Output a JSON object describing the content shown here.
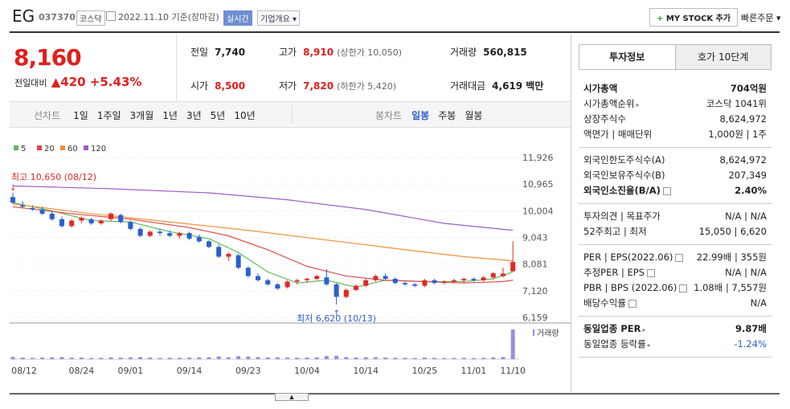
{
  "header": {
    "name": "EG",
    "code": "037370",
    "market": "코스닥",
    "date": "2022.11.10",
    "basis": "기준(장마감)",
    "realtime": "실시간",
    "overview": "기업개요",
    "mystock": "MY STOCK 추가",
    "quick_order": "빠른주문"
  },
  "quote": {
    "price": "8,160",
    "change_label": "전일대비",
    "change": "420",
    "rate": "+5.43%",
    "fields": [
      {
        "label": "전일",
        "value": "7,740",
        "extra": null,
        "color": "#222"
      },
      {
        "label": "고가",
        "value": "8,910",
        "extra": "(상한가 10,050)",
        "color": "#e0201c"
      },
      {
        "label": "거래량",
        "value": "560,815",
        "extra": null,
        "color": "#222"
      },
      {
        "label": "시가",
        "value": "8,500",
        "extra": null,
        "color": "#e0201c"
      },
      {
        "label": "저가",
        "value": "7,820",
        "extra": "(하한가 5,420)",
        "color": "#e0201c"
      },
      {
        "label": "거래대금",
        "value": "4,619 백만",
        "extra": null,
        "color": "#222"
      }
    ]
  },
  "toolbar": {
    "line_chart": "선차트",
    "periods": [
      "1일",
      "1주일",
      "3개월",
      "1년",
      "3년",
      "5년",
      "10년"
    ],
    "candle_chart": "봉차트",
    "candle_periods": [
      "일봉",
      "주봉",
      "월봉"
    ],
    "active": "일봉"
  },
  "chart": {
    "ylim": [
      6159,
      11926
    ],
    "yticks": [
      {
        "value": 11926,
        "label": "11,926"
      },
      {
        "value": 10965,
        "label": "10,965"
      },
      {
        "value": 10004,
        "label": "10,004"
      },
      {
        "value": 9043,
        "label": "9,043"
      },
      {
        "value": 8081,
        "label": "8,081"
      },
      {
        "value": 7120,
        "label": "7,120"
      },
      {
        "value": 6159,
        "label": "6,159"
      }
    ],
    "up_color": "#e22926",
    "down_color": "#2a5fd0",
    "volume_color": "#9b8fd6",
    "volume_label": "거래량",
    "high_label": "최고 10,650 (08/12)",
    "low_label": "최저 6,620 (10/13)",
    "ma": [
      {
        "name": "5",
        "color": "#5cb85c",
        "x": [
          0,
          4,
          8,
          12,
          16,
          20,
          23,
          26,
          29,
          32,
          35,
          38,
          42,
          46,
          49,
          51
        ],
        "values": [
          10300,
          10000,
          9650,
          9600,
          9250,
          9000,
          8500,
          7800,
          7400,
          7500,
          7250,
          7500,
          7450,
          7450,
          7550,
          7800
        ]
      },
      {
        "name": "20",
        "color": "#e04848",
        "x": [
          0,
          6,
          12,
          18,
          22,
          26,
          30,
          34,
          38,
          42,
          46,
          50,
          51
        ],
        "values": [
          10150,
          9900,
          9700,
          9400,
          9100,
          8600,
          8000,
          7650,
          7500,
          7450,
          7400,
          7450,
          7500
        ]
      },
      {
        "name": "60",
        "color": "#f0913a",
        "x": [
          0,
          8,
          16,
          24,
          32,
          40,
          46,
          51
        ],
        "values": [
          10250,
          9900,
          9600,
          9300,
          8950,
          8600,
          8350,
          8200
        ]
      },
      {
        "name": "120",
        "color": "#a05cc8",
        "x": [
          0,
          10,
          20,
          28,
          36,
          44,
          51
        ],
        "values": [
          10900,
          10800,
          10650,
          10400,
          10050,
          9550,
          9300
        ]
      }
    ],
    "candles": [
      [
        10500,
        10650,
        10250,
        10300
      ],
      [
        10200,
        10350,
        10100,
        10150
      ],
      [
        10100,
        10200,
        10000,
        10050
      ],
      [
        10050,
        10150,
        9850,
        9900
      ],
      [
        9900,
        10000,
        9650,
        9700
      ],
      [
        9700,
        9800,
        9400,
        9450
      ],
      [
        9450,
        9700,
        9400,
        9650
      ],
      [
        9650,
        9800,
        9550,
        9750
      ],
      [
        9700,
        9750,
        9500,
        9550
      ],
      [
        9550,
        9700,
        9500,
        9650
      ],
      [
        9700,
        9950,
        9650,
        9900
      ],
      [
        9850,
        9900,
        9550,
        9600
      ],
      [
        9600,
        9650,
        9300,
        9350
      ],
      [
        9350,
        9400,
        9050,
        9100
      ],
      [
        9100,
        9300,
        9050,
        9250
      ],
      [
        9250,
        9350,
        9100,
        9200
      ],
      [
        9200,
        9300,
        9050,
        9100
      ],
      [
        9100,
        9250,
        9000,
        9200
      ],
      [
        9200,
        9250,
        8950,
        9000
      ],
      [
        9050,
        9150,
        8850,
        8900
      ],
      [
        8900,
        8950,
        8650,
        8700
      ],
      [
        8700,
        8800,
        8300,
        8350
      ],
      [
        8350,
        8500,
        8200,
        8450
      ],
      [
        8400,
        8450,
        7900,
        7950
      ],
      [
        7950,
        8000,
        7600,
        7650
      ],
      [
        7650,
        7750,
        7450,
        7500
      ],
      [
        7500,
        7550,
        7300,
        7350
      ],
      [
        7350,
        7400,
        7150,
        7200
      ],
      [
        7250,
        7500,
        7200,
        7450
      ],
      [
        7450,
        7550,
        7350,
        7500
      ],
      [
        7500,
        7600,
        7400,
        7550
      ],
      [
        7550,
        7700,
        7500,
        7650
      ],
      [
        7600,
        7900,
        7300,
        7350
      ],
      [
        7350,
        7400,
        6620,
        6900
      ],
      [
        6900,
        7200,
        6850,
        7150
      ],
      [
        7150,
        7350,
        7100,
        7300
      ],
      [
        7300,
        7550,
        7250,
        7500
      ],
      [
        7500,
        7700,
        7450,
        7650
      ],
      [
        7650,
        7750,
        7500,
        7550
      ],
      [
        7550,
        7600,
        7350,
        7400
      ],
      [
        7400,
        7450,
        7300,
        7350
      ],
      [
        7350,
        7400,
        7250,
        7300
      ],
      [
        7300,
        7550,
        7250,
        7500
      ],
      [
        7500,
        7550,
        7350,
        7400
      ],
      [
        7400,
        7500,
        7350,
        7450
      ],
      [
        7450,
        7550,
        7400,
        7500
      ],
      [
        7500,
        7600,
        7400,
        7550
      ],
      [
        7550,
        7600,
        7450,
        7500
      ],
      [
        7500,
        7650,
        7450,
        7600
      ],
      [
        7600,
        7800,
        7550,
        7750
      ],
      [
        7650,
        7950,
        7600,
        7740
      ],
      [
        7820,
        8910,
        7820,
        8160
      ]
    ],
    "volumes": [
      42000,
      30000,
      26000,
      31000,
      35000,
      40000,
      28000,
      30000,
      22000,
      25000,
      33000,
      29000,
      36000,
      41000,
      30000,
      24000,
      26000,
      25000,
      30000,
      33000,
      38000,
      52000,
      36000,
      58000,
      50000,
      40000,
      34000,
      36000,
      30000,
      28000,
      31000,
      35000,
      60000,
      64000,
      40000,
      33000,
      36000,
      38000,
      30000,
      27000,
      25000,
      22000,
      30000,
      24000,
      21000,
      23000,
      26000,
      22000,
      25000,
      34000,
      40000,
      560815
    ],
    "dates": [
      "08/12",
      null,
      null,
      null,
      null,
      null,
      null,
      "08/24",
      null,
      null,
      null,
      null,
      "09/01",
      null,
      null,
      null,
      null,
      null,
      "09/14",
      null,
      null,
      null,
      null,
      null,
      "09/23",
      null,
      null,
      null,
      null,
      null,
      "10/04",
      null,
      null,
      null,
      null,
      null,
      "10/14",
      null,
      null,
      null,
      null,
      null,
      "10/25",
      null,
      null,
      null,
      null,
      "11/01",
      null,
      null,
      null,
      "11/10"
    ]
  },
  "info": {
    "tabs": [
      "투자정보",
      "호가 10단계"
    ],
    "sections": [
      {
        "rows": [
          {
            "label": "시가총액",
            "value": "704억원",
            "bold": true
          },
          {
            "label": "시가총액순위",
            "value": "코스닥 1041위",
            "icon": "arrow"
          },
          {
            "label": "상장주식수",
            "value": "8,624,972"
          },
          {
            "label": "액면가 | 매매단위",
            "value": "1,000원 | 1주"
          }
        ]
      },
      {
        "rows": [
          {
            "label": "외국인한도주식수(A)",
            "value": "8,624,972"
          },
          {
            "label": "외국인보유주식수(B)",
            "value": "207,349"
          },
          {
            "label": "외국인소진율(B/A)",
            "value": "2.40%",
            "bold": true,
            "icon": "help"
          }
        ]
      },
      {
        "rows": [
          {
            "label": "투자의견 | 목표주가",
            "value": "N/A | N/A"
          },
          {
            "label": "52주최고 | 최저",
            "value": "15,050 | 6,620"
          }
        ]
      },
      {
        "rows": [
          {
            "label": "PER | EPS(2022.06)",
            "value": "22.99배 | 355원",
            "icon": "help"
          },
          {
            "label": "추정PER | EPS",
            "value": "N/A | N/A",
            "icon": "help"
          },
          {
            "label": "PBR | BPS (2022.06)",
            "value": "1.08배 | 7,557원",
            "icon": "help"
          },
          {
            "label": "배당수익률",
            "value": "N/A",
            "icon": "help"
          }
        ]
      },
      {
        "rows": [
          {
            "label": "동일업종 PER",
            "value": "9.87배",
            "bold": true,
            "icon": "arrow"
          },
          {
            "label": "동일업종 등락률",
            "value": "-1.24%",
            "icon": "arrow",
            "color": "#2a5fd0"
          }
        ]
      }
    ]
  }
}
